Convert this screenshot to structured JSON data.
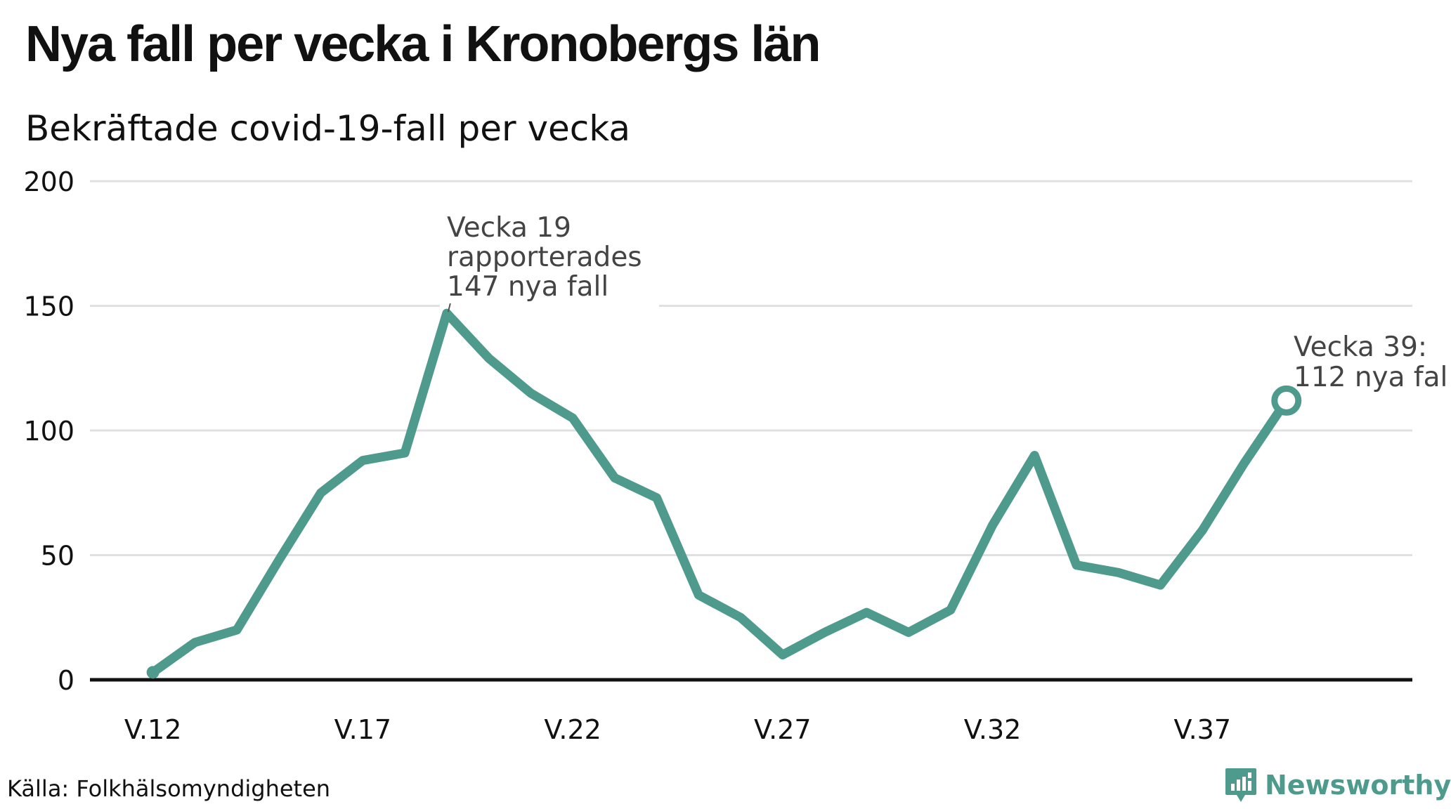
{
  "title": "Nya fall per vecka i Kronobergs län",
  "subtitle": "Bekräftade covid-19-fall per vecka",
  "source": "Källa: Folkhälsomyndigheten",
  "brand": "Newsworthy",
  "colors": {
    "line": "#4e9a8c",
    "grid": "#e0e0e0",
    "axis": "#111111",
    "text": "#111111",
    "annotation": "#444444"
  },
  "chart_data": {
    "type": "line",
    "x": [
      12,
      13,
      14,
      15,
      16,
      17,
      18,
      19,
      20,
      21,
      22,
      23,
      24,
      25,
      26,
      27,
      28,
      29,
      30,
      31,
      32,
      33,
      34,
      35,
      36,
      37,
      38,
      39
    ],
    "values": [
      3,
      15,
      20,
      48,
      75,
      88,
      91,
      147,
      129,
      115,
      105,
      81,
      73,
      34,
      25,
      10,
      19,
      27,
      19,
      28,
      62,
      90,
      46,
      43,
      38,
      60,
      87,
      112
    ],
    "xlim": [
      10.5,
      42
    ],
    "ylim": [
      0,
      200
    ],
    "yticks": [
      0,
      50,
      100,
      150,
      200
    ],
    "xticks": [
      {
        "x": 12,
        "label": "V.12"
      },
      {
        "x": 17,
        "label": "V.17"
      },
      {
        "x": 22,
        "label": "V.22"
      },
      {
        "x": 27,
        "label": "V.27"
      },
      {
        "x": 32,
        "label": "V.32"
      },
      {
        "x": 37,
        "label": "V.37"
      }
    ],
    "grid": true,
    "annotations": [
      {
        "x": 19,
        "y": 147,
        "lines": [
          "Vecka 19",
          "rapporterades",
          "147 nya fall"
        ]
      },
      {
        "x": 39,
        "y": 112,
        "lines": [
          "Vecka 39:",
          "112 nya fal"
        ]
      }
    ]
  }
}
